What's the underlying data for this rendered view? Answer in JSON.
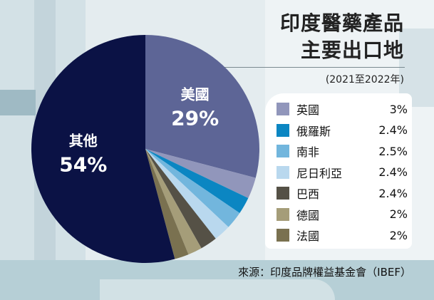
{
  "title": [
    "印度醫藥產品",
    "主要出口地"
  ],
  "subtitle": "(2021至2022年)",
  "source": "來源：印度品牌權益基金會（IBEF）",
  "chart_data": {
    "type": "pie",
    "slices": [
      {
        "name": "美國",
        "value": 29,
        "label": "29%",
        "color": "#5d6596",
        "show_inside": true
      },
      {
        "name": "英國",
        "value": 3,
        "label": "3%",
        "color": "#9196bb"
      },
      {
        "name": "俄羅斯",
        "value": 2.4,
        "label": "2.4%",
        "color": "#0b86c2"
      },
      {
        "name": "南非",
        "value": 2.5,
        "label": "2.5%",
        "color": "#72b6dd"
      },
      {
        "name": "尼日利亞",
        "value": 2.4,
        "label": "2.4%",
        "color": "#b9d8ee"
      },
      {
        "name": "巴西",
        "value": 2.4,
        "label": "2.4%",
        "color": "#555146"
      },
      {
        "name": "德國",
        "value": 2,
        "label": "2%",
        "color": "#a59d79"
      },
      {
        "name": "法國",
        "value": 2,
        "label": "2%",
        "color": "#7a7150"
      },
      {
        "name": "其他",
        "value": 54,
        "label": "54%",
        "color": "#0b1245",
        "show_inside": true
      }
    ],
    "legend_order": [
      "英國",
      "俄羅斯",
      "南非",
      "尼日利亞",
      "巴西",
      "德國",
      "法國"
    ]
  }
}
